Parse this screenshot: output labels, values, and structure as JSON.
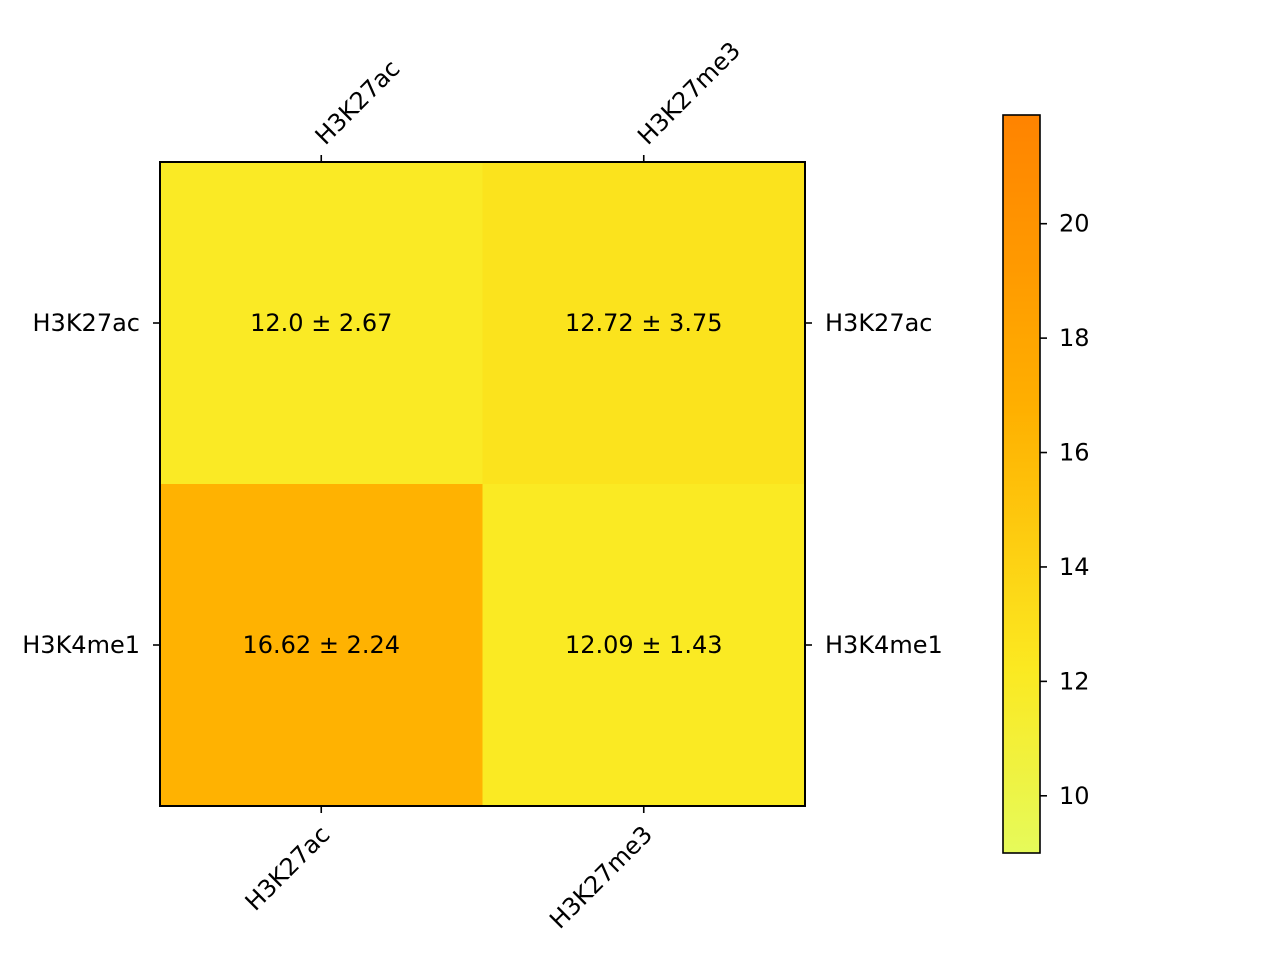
{
  "chart_data": {
    "type": "heatmap",
    "title": "",
    "xlabel": "",
    "ylabel": "",
    "x_categories": [
      "H3K27ac",
      "H3K27me3"
    ],
    "y_categories": [
      "H3K27ac",
      "H3K4me1"
    ],
    "values": [
      [
        12.0,
        12.72
      ],
      [
        16.62,
        12.09
      ]
    ],
    "errors": [
      [
        2.67,
        3.75
      ],
      [
        2.24,
        1.43
      ]
    ],
    "cell_labels": [
      [
        "12.0 ± 2.67",
        "12.72 ± 3.75"
      ],
      [
        "16.62 ± 2.24",
        "12.09 ± 1.43"
      ]
    ],
    "colorbar": {
      "range": [
        9.0,
        21.9
      ],
      "ticks": [
        10,
        12,
        14,
        16,
        18,
        20
      ],
      "tick_labels": [
        "10",
        "12",
        "14",
        "16",
        "18",
        "20"
      ],
      "colors": {
        "low": "#e6fa5a",
        "mid": "#fbe921",
        "midhigh": "#ffb000",
        "high": "#ff8300"
      }
    },
    "x_tick_positions": [
      "top",
      "bottom"
    ],
    "y_tick_positions": [
      "left",
      "right"
    ],
    "grid": false,
    "legend": "colorbar-right"
  }
}
